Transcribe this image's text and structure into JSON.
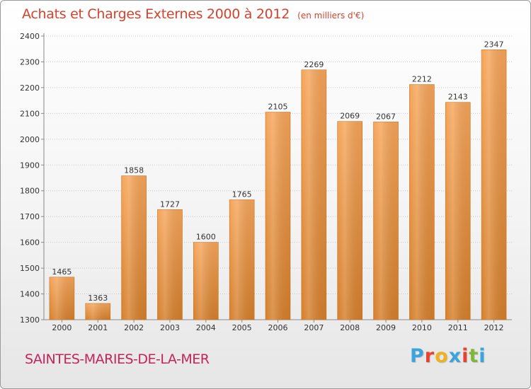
{
  "header": {
    "title": "Achats et Charges Externes 2000 à 2012",
    "unit": "(en milliers d'€)"
  },
  "footer": {
    "commune": "SAINTES-MARIES-DE-LA-MER",
    "logo_text": "Proxiti",
    "logo_colors": [
      "#3aa4dc",
      "#e8432f",
      "#f0b120",
      "#3aa4dc",
      "#e8432f",
      "#7db83a",
      "#3aa4dc"
    ]
  },
  "colors": {
    "bar_light": "#f6a55a",
    "bar_dark": "#d57f2b",
    "title": "#d2442f",
    "commune": "#c2255c"
  },
  "chart_data": {
    "type": "bar",
    "title": "Achats et Charges Externes 2000 à 2012",
    "subtitle": "(en milliers d'€)",
    "categories": [
      "2000",
      "2001",
      "2002",
      "2003",
      "2004",
      "2005",
      "2006",
      "2007",
      "2008",
      "2009",
      "2010",
      "2011",
      "2012"
    ],
    "values": [
      1465,
      1363,
      1858,
      1727,
      1600,
      1765,
      2105,
      2269,
      2069,
      2067,
      2212,
      2143,
      2347
    ],
    "ylim": [
      1300,
      2400
    ],
    "yticks": [
      1300,
      1400,
      1500,
      1600,
      1700,
      1800,
      1900,
      2000,
      2100,
      2200,
      2300,
      2400
    ],
    "grid": true,
    "xlabel": "",
    "ylabel": ""
  }
}
